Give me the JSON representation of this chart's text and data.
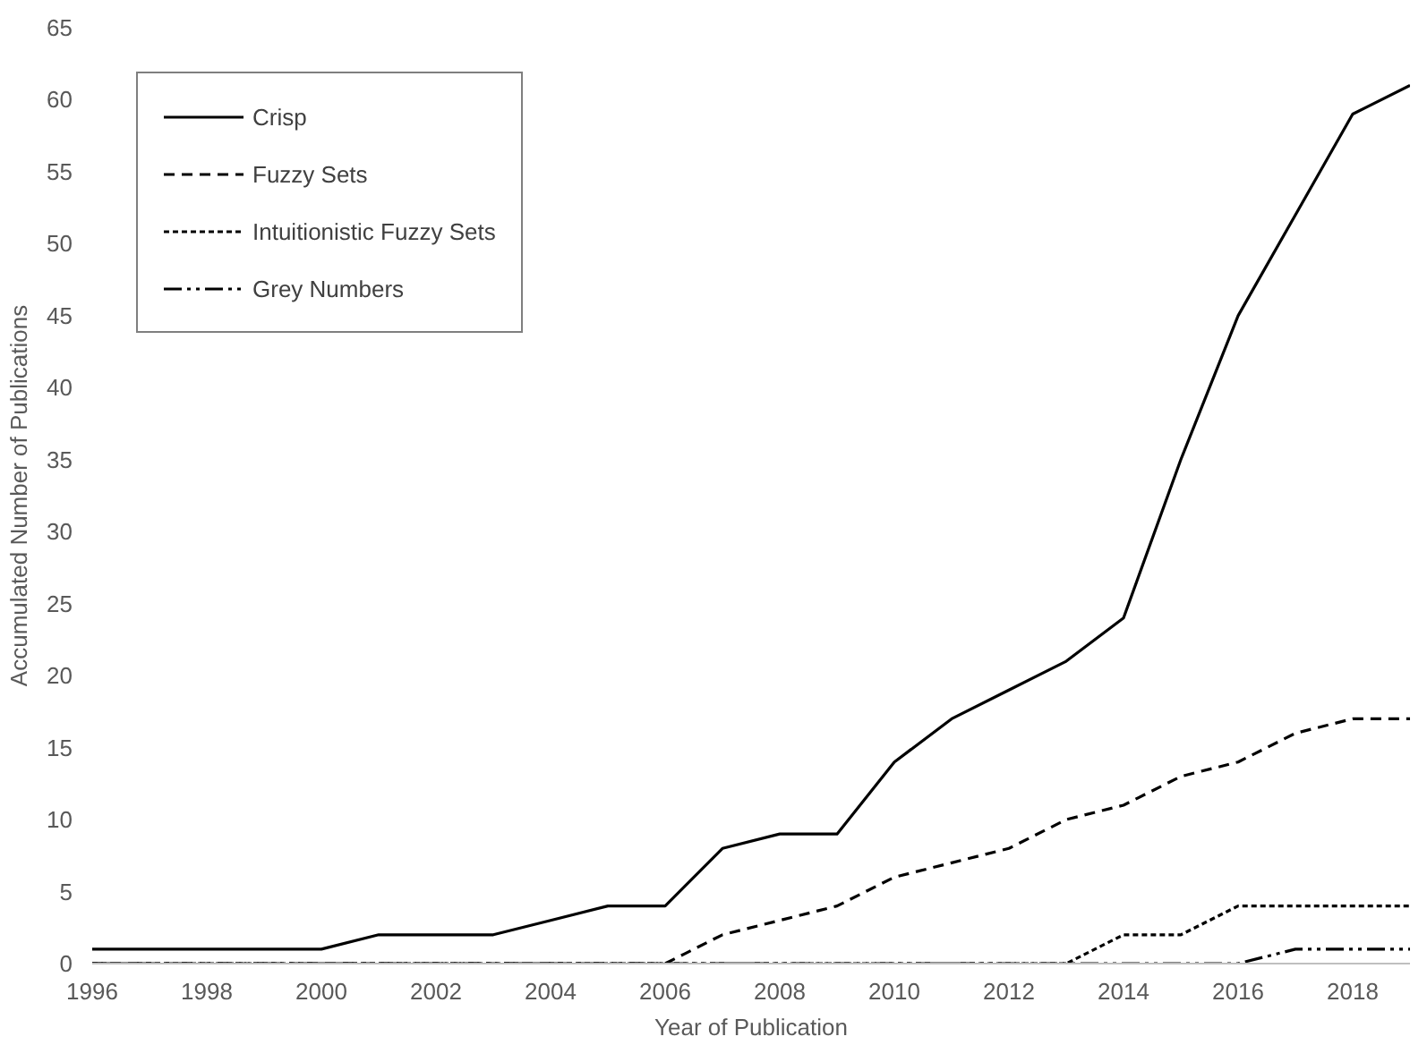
{
  "chart_data": {
    "type": "line",
    "xlabel": "Year of Publication",
    "ylabel": "Accumulated Number of Publications",
    "x": [
      1996,
      1997,
      1998,
      1999,
      2000,
      2001,
      2002,
      2003,
      2004,
      2005,
      2006,
      2007,
      2008,
      2009,
      2010,
      2011,
      2012,
      2013,
      2014,
      2015,
      2016,
      2017,
      2018,
      2019
    ],
    "series": [
      {
        "name": "Crisp",
        "color": "#000000",
        "line_style": "solid",
        "values": [
          1,
          1,
          1,
          1,
          1,
          2,
          2,
          2,
          3,
          4,
          4,
          8,
          9,
          9,
          14,
          17,
          19,
          21,
          24,
          35,
          45,
          52,
          59,
          61
        ]
      },
      {
        "name": "Fuzzy Sets",
        "color": "#000000",
        "line_style": "dashed",
        "values": [
          0,
          0,
          0,
          0,
          0,
          0,
          0,
          0,
          0,
          0,
          0,
          2,
          3,
          4,
          6,
          7,
          8,
          10,
          11,
          13,
          14,
          16,
          17,
          17
        ]
      },
      {
        "name": "Intuitionistic Fuzzy Sets",
        "color": "#000000",
        "line_style": "dotted",
        "values": [
          0,
          0,
          0,
          0,
          0,
          0,
          0,
          0,
          0,
          0,
          0,
          0,
          0,
          0,
          0,
          0,
          0,
          0,
          2,
          2,
          4,
          4,
          4,
          4
        ]
      },
      {
        "name": "Grey Numbers",
        "color": "#000000",
        "line_style": "dashdot",
        "values": [
          0,
          0,
          0,
          0,
          0,
          0,
          0,
          0,
          0,
          0,
          0,
          0,
          0,
          0,
          0,
          0,
          0,
          0,
          0,
          0,
          0,
          1,
          1,
          1
        ]
      }
    ],
    "xlim": [
      1996,
      2019
    ],
    "ylim": [
      0,
      65
    ],
    "xticks": [
      1996,
      1998,
      2000,
      2002,
      2004,
      2006,
      2008,
      2010,
      2012,
      2014,
      2016,
      2018
    ],
    "yticks": [
      0,
      5,
      10,
      15,
      20,
      25,
      30,
      35,
      40,
      45,
      50,
      55,
      60,
      65
    ],
    "grid": false,
    "legend": "top left",
    "marker": "none"
  }
}
